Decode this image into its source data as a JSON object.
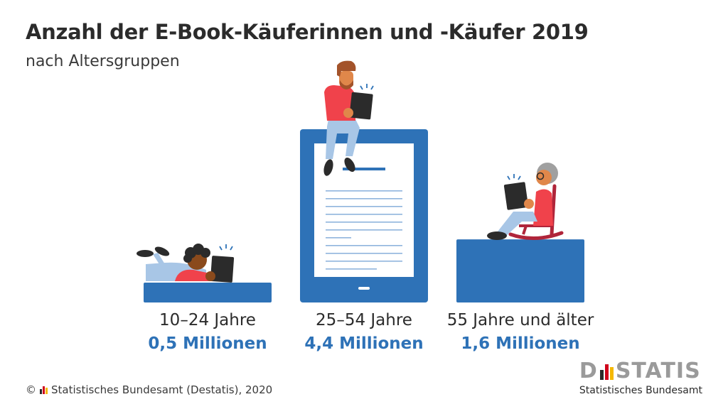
{
  "chart_data": {
    "type": "bar",
    "title": "Anzahl der E-Book-Käuferinnen und -Käufer 2019",
    "subtitle": "nach Altersgruppen",
    "categories": [
      "10–24 Jahre",
      "25–54 Jahre",
      "55 Jahre und älter"
    ],
    "values": [
      0.5,
      4.4,
      1.6
    ],
    "value_labels": [
      "0,5 Millionen",
      "4,4 Millionen",
      "1,6 Millionen"
    ],
    "unit": "Millionen",
    "colors": {
      "bar": "#2e72b7",
      "value_text": "#2e72b7",
      "text": "#2b2b2b",
      "screen": "#ffffff",
      "text_lines": "#8fb4dd"
    },
    "icons": [
      "person-lying-reading-icon",
      "person-sitting-reading-icon",
      "elderly-person-rocking-chair-icon"
    ],
    "grid": false,
    "legend": "none"
  },
  "footer": {
    "copyright": "© ",
    "source": "Statistisches Bundesamt (Destatis), 2020"
  },
  "logo": {
    "word_left": "D",
    "word_right": "STATIS",
    "subtitle": "Statistisches Bundesamt",
    "bar_colors": [
      "#2b2b2b",
      "#d0021b",
      "#f5b800"
    ]
  }
}
